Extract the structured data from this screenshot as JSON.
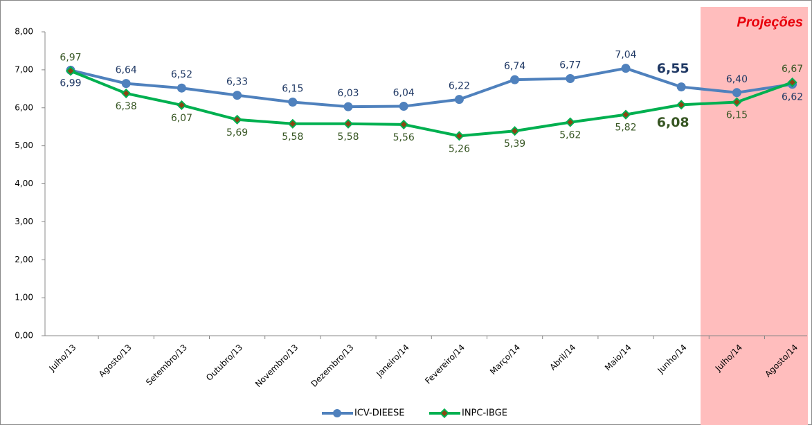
{
  "chart_data": {
    "type": "line",
    "annotation": "Projeções",
    "categories": [
      "Julho/13",
      "Agosto/13",
      "Setembro/13",
      "Outubro/13",
      "Novembro/13",
      "Dezembro/13",
      "Janeiro/14",
      "Fevereiro/14",
      "Março/14",
      "Abril/14",
      "Maio/14",
      "Junho/14",
      "Julho/14",
      "Agosto/14"
    ],
    "series": [
      {
        "name": "ICV-DIEESE",
        "color": "#4f81bd",
        "label_color": "#1f3864",
        "values": [
          6.99,
          6.64,
          6.52,
          6.33,
          6.15,
          6.03,
          6.04,
          6.22,
          6.74,
          6.77,
          7.04,
          6.55,
          6.4,
          6.62
        ],
        "value_labels": [
          "6,99",
          "6,64",
          "6,52",
          "6,33",
          "6,15",
          "6,03",
          "6,04",
          "6,22",
          "6,74",
          "6,77",
          "7,04",
          "6,55",
          "6,40",
          "6,62"
        ]
      },
      {
        "name": "INPC-IBGE",
        "color": "#00b050",
        "label_color": "#375623",
        "values": [
          6.97,
          6.38,
          6.07,
          5.69,
          5.58,
          5.58,
          5.56,
          5.26,
          5.39,
          5.62,
          5.82,
          6.08,
          6.15,
          6.67
        ],
        "value_labels": [
          "6,97",
          "6,38",
          "6,07",
          "5,69",
          "5,58",
          "5,58",
          "5,56",
          "5,26",
          "5,39",
          "5,62",
          "5,82",
          "6,08",
          "6,15",
          "6,67"
        ]
      }
    ],
    "ylim": [
      0,
      8
    ],
    "yticks": [
      {
        "value": 0,
        "label": "0,00"
      },
      {
        "value": 1,
        "label": "1,00"
      },
      {
        "value": 2,
        "label": "2,00"
      },
      {
        "value": 3,
        "label": "3,00"
      },
      {
        "value": 4,
        "label": "4,00"
      },
      {
        "value": 5,
        "label": "5,00"
      },
      {
        "value": 6,
        "label": "6,00"
      },
      {
        "value": 7,
        "label": "7,00"
      },
      {
        "value": 8,
        "label": "8,00"
      }
    ],
    "legend": "bottom"
  }
}
